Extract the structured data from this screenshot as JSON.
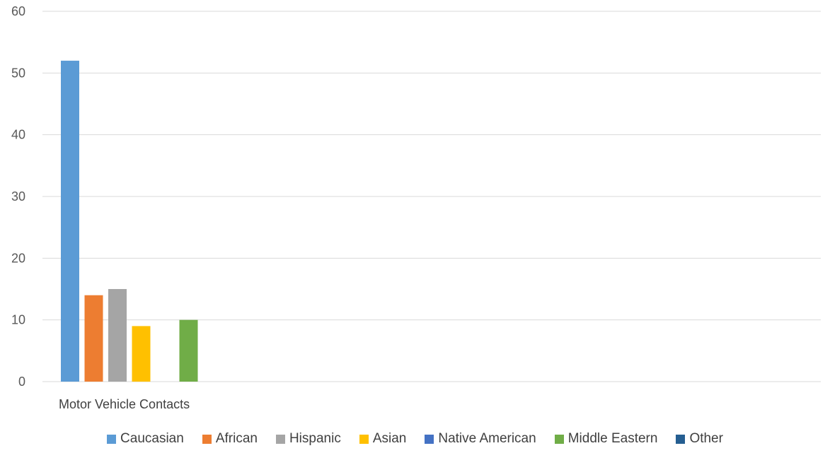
{
  "chart_data": {
    "type": "bar",
    "categories": [
      "Motor Vehicle Contacts"
    ],
    "series": [
      {
        "name": "Caucasian",
        "values": [
          52
        ],
        "color": "#5B9BD5"
      },
      {
        "name": "African",
        "values": [
          14
        ],
        "color": "#ED7D31"
      },
      {
        "name": "Hispanic",
        "values": [
          15
        ],
        "color": "#A5A5A5"
      },
      {
        "name": "Asian",
        "values": [
          9
        ],
        "color": "#FFC000"
      },
      {
        "name": "Native American",
        "values": [
          0
        ],
        "color": "#4472C4"
      },
      {
        "name": "Middle Eastern",
        "values": [
          10
        ],
        "color": "#70AD47"
      },
      {
        "name": "Other",
        "values": [
          0
        ],
        "color": "#255E91"
      }
    ],
    "ylim": [
      0,
      60
    ],
    "yticks": [
      0,
      10,
      20,
      30,
      40,
      50,
      60
    ],
    "grid": true,
    "legend_position": "bottom"
  }
}
